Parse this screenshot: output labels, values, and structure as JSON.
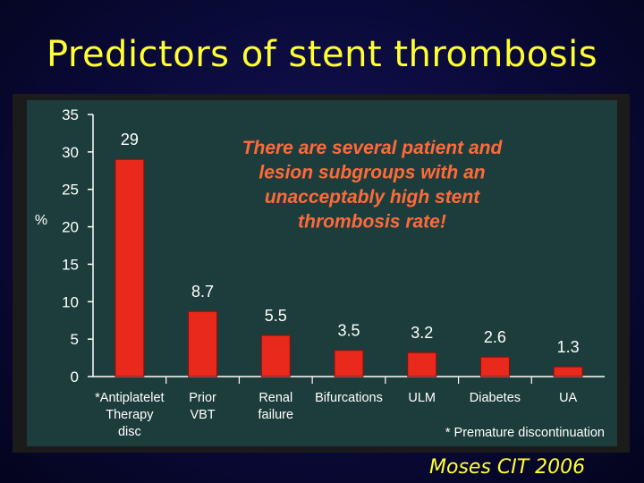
{
  "slide": {
    "title": "Predictors of stent thrombosis",
    "citation": "Moses CIT 2006"
  },
  "chart_data": {
    "type": "bar",
    "categories": [
      [
        "*Antiplatelet",
        "Therapy",
        "disc"
      ],
      [
        "Prior",
        "VBT"
      ],
      [
        "Renal",
        "failure"
      ],
      [
        "Bifurcations"
      ],
      [
        "ULM"
      ],
      [
        "Diabetes"
      ],
      [
        "UA"
      ]
    ],
    "values": [
      29,
      8.7,
      5.5,
      3.5,
      3.2,
      2.6,
      1.3
    ],
    "value_labels": [
      "29",
      "8.7",
      "5.5",
      "3.5",
      "3.2",
      "2.6",
      "1.3"
    ],
    "ylabel": "%",
    "ylim": [
      0,
      35
    ],
    "yticks": [
      0,
      5,
      10,
      15,
      20,
      25,
      30,
      35
    ],
    "annotation": [
      "There are several patient and",
      "lesion subgroups with an",
      "unacceptably high stent",
      "thrombosis rate!"
    ],
    "footnote": "* Premature discontinuation",
    "colors": {
      "bar": "#e8291c",
      "panel": "#1d3d3d",
      "annotation": "#ff6a3a",
      "text": "#ffffff"
    }
  }
}
